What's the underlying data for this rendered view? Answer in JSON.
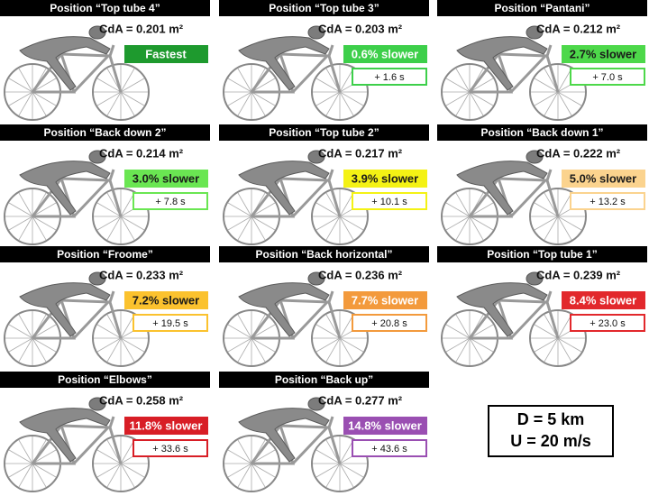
{
  "panels": [
    {
      "title": "Position “Top tube 4”",
      "cda": "CdA = 0.201 m²",
      "badge": "Fastest",
      "badge_color": "#1e9a2e",
      "badge_text_color": "#ffffff"
    },
    {
      "title": "Position “Top tube 3”",
      "cda": "CdA = 0.203 m²",
      "badge": "0.6% slower",
      "time": "+ 1.6 s",
      "badge_color": "#3dcf4a",
      "badge_text_color": "#ffffff"
    },
    {
      "title": "Position “Pantani”",
      "cda": "CdA = 0.212 m²",
      "badge": "2.7% slower",
      "time": "+ 7.0 s",
      "badge_color": "#4dd84a",
      "badge_text_color": "#1a1a1a"
    },
    {
      "title": "Position “Back down 2”",
      "cda": "CdA = 0.214 m²",
      "badge": "3.0% slower",
      "time": "+ 7.8 s",
      "badge_color": "#6ae652",
      "badge_text_color": "#1a1a1a"
    },
    {
      "title": "Position “Top tube 2”",
      "cda": "CdA = 0.217 m²",
      "badge": "3.9% slower",
      "time": "+ 10.1 s",
      "badge_color": "#f4f214",
      "badge_text_color": "#1a1a1a"
    },
    {
      "title": "Position “Back down 1”",
      "cda": "CdA = 0.222 m²",
      "badge": "5.0% slower",
      "time": "+ 13.2 s",
      "badge_color": "#fbd38e",
      "badge_text_color": "#1a1a1a"
    },
    {
      "title": "Position “Froome”",
      "cda": "CdA = 0.233 m²",
      "badge": "7.2% slower",
      "time": "+ 19.5 s",
      "badge_color": "#fbc22e",
      "badge_text_color": "#1a1a1a"
    },
    {
      "title": "Position “Back horizontal”",
      "cda": "CdA = 0.236 m²",
      "badge": "7.7% slower",
      "time": "+ 20.8 s",
      "badge_color": "#f39a3c",
      "badge_text_color": "#ffffff"
    },
    {
      "title": "Position “Top tube 1”",
      "cda": "CdA = 0.239 m²",
      "badge": "8.4% slower",
      "time": "+ 23.0 s",
      "badge_color": "#e2282c",
      "badge_text_color": "#ffffff"
    },
    {
      "title": "Position “Elbows”",
      "cda": "CdA = 0.258 m²",
      "badge": "11.8% slower",
      "time": "+ 33.6 s",
      "badge_color": "#d81e26",
      "badge_text_color": "#ffffff"
    },
    {
      "title": "Position “Back up”",
      "cda": "CdA = 0.277 m²",
      "badge": "14.8% slower",
      "time": "+ 43.6 s",
      "badge_color": "#9a4fb2",
      "badge_text_color": "#ffffff"
    }
  ],
  "conditions": {
    "distance": "D = 5 km",
    "speed": "U = 20 m/s"
  }
}
